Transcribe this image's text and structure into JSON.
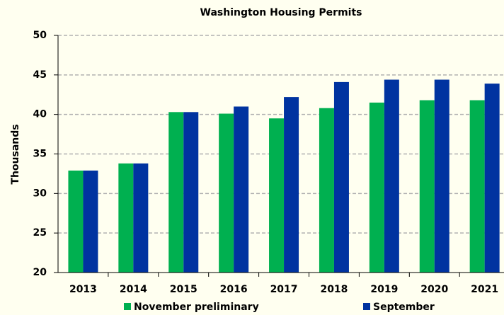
{
  "chart_data": {
    "type": "bar",
    "title": "Washington Housing Permits",
    "y_label": "Thousands",
    "categories": [
      "2013",
      "2014",
      "2015",
      "2016",
      "2017",
      "2018",
      "2019",
      "2020",
      "2021"
    ],
    "series": [
      {
        "name": "November preliminary",
        "color": "#00b050",
        "values": [
          32.9,
          33.8,
          40.3,
          40.1,
          39.5,
          40.8,
          41.5,
          41.8,
          41.8
        ]
      },
      {
        "name": "September",
        "color": "#0033a0",
        "values": [
          32.9,
          33.8,
          40.3,
          41.0,
          42.2,
          44.1,
          44.4,
          44.4,
          43.9
        ]
      }
    ],
    "ylim": [
      20,
      50
    ],
    "yticks": [
      20,
      25,
      30,
      35,
      40,
      45,
      50
    ],
    "grid": true,
    "legend": "bottom"
  }
}
